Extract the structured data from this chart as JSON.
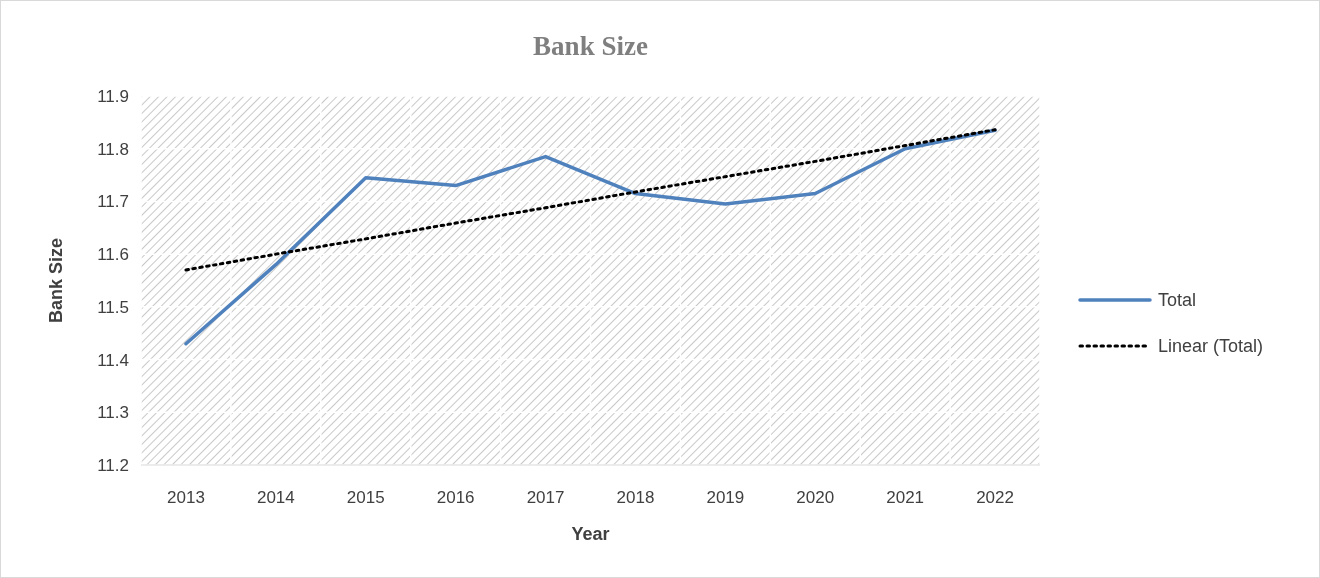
{
  "chart_data": {
    "type": "line",
    "title": "Bank Size",
    "xlabel": "Year",
    "ylabel": "Bank Size",
    "categories": [
      "2013",
      "2014",
      "2015",
      "2016",
      "2017",
      "2018",
      "2019",
      "2020",
      "2021",
      "2022"
    ],
    "series": [
      {
        "name": "Total",
        "color": "#4f81bd",
        "values": [
          11.43,
          11.58,
          11.745,
          11.73,
          11.785,
          11.715,
          11.695,
          11.715,
          11.8,
          11.835
        ],
        "line_style": "solid"
      },
      {
        "name": "Linear (Total)",
        "type": "line",
        "color": "#000000",
        "values": [
          11.57,
          11.6,
          11.629,
          11.659,
          11.688,
          11.718,
          11.747,
          11.776,
          11.806,
          11.836
        ],
        "line_style": "dotted"
      }
    ],
    "ylim": [
      11.2,
      11.9
    ],
    "yticks": [
      11.2,
      11.3,
      11.4,
      11.5,
      11.6,
      11.7,
      11.8,
      11.9
    ],
    "grid": true,
    "legend": "right",
    "marker": "none"
  }
}
